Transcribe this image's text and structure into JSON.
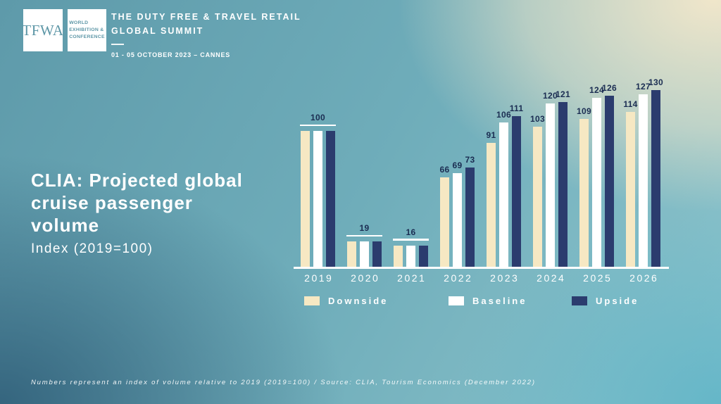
{
  "theme": {
    "bg_top_left": "#5E9AAA",
    "bg_top_right": "#F0E6CA",
    "bg_bottom_left": "#38677F",
    "bg_bottom_right": "#62B5C8",
    "bar_downside_color": "#F6E8C3",
    "bar_baseline_color": "#FFFFFF",
    "bar_upside_color": "#2B3C6E",
    "value_label_color": "#1B2D52",
    "logo_teal": "#5E97A7",
    "text_color": "#FFFFFF"
  },
  "header": {
    "logo_text": "TFWA",
    "logo_sub_line1": "WORLD",
    "logo_sub_line2": "EXHIBITION &",
    "logo_sub_line3": "CONFERENCE",
    "event_title_line1": "THE DUTY FREE & TRAVEL RETAIL",
    "event_title_line2": "GLOBAL SUMMIT",
    "event_date": "01 - 05 OCTOBER 2023 – CANNES"
  },
  "title": {
    "heading_line1": "CLIA: Projected global",
    "heading_line2": "cruise passenger",
    "heading_line3": "volume",
    "subheading": "Index (2019=100)"
  },
  "chart_data": {
    "type": "bar",
    "title": "CLIA: Projected global cruise passenger volume",
    "ylabel": "Index (2019=100)",
    "xlabel": "",
    "categories": [
      "2019",
      "2020",
      "2021",
      "2022",
      "2023",
      "2024",
      "2025",
      "2026"
    ],
    "series": [
      {
        "name": "Downside",
        "color": "#F6E8C3",
        "values": [
          100,
          19,
          16,
          66,
          91,
          103,
          109,
          114
        ]
      },
      {
        "name": "Baseline",
        "color": "#FFFFFF",
        "values": [
          100,
          19,
          16,
          69,
          106,
          120,
          124,
          127
        ]
      },
      {
        "name": "Upside",
        "color": "#2B3C6E",
        "values": [
          100,
          19,
          16,
          73,
          111,
          121,
          126,
          130
        ]
      }
    ],
    "ylim": [
      0,
      135
    ],
    "grid": false,
    "value_labels": true,
    "legend_position": "bottom"
  },
  "legend": [
    {
      "label": "Downside",
      "color": "#F6E8C3"
    },
    {
      "label": "Baseline",
      "color": "#FFFFFF"
    },
    {
      "label": "Upside",
      "color": "#2B3C6E"
    }
  ],
  "footer": {
    "note": "Numbers represent an index of volume relative to 2019 (2019=100) / Source: CLIA, Tourism Economics (December 2022)"
  }
}
